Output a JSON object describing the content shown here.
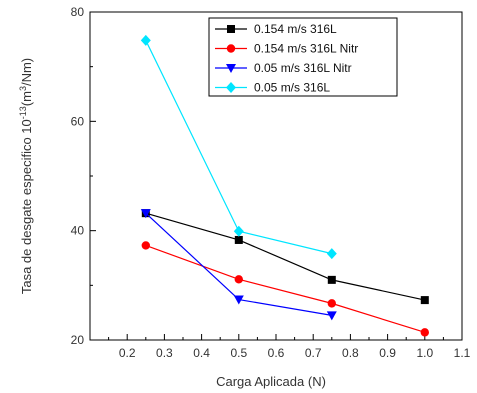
{
  "chart_data": {
    "type": "line",
    "title": "",
    "xlabel": "Carga Aplicada (N)",
    "ylabel_main": "Tasa de desgate especifico 10",
    "ylabel_exp": "-13",
    "ylabel_unit_open": "(m",
    "ylabel_unit_exp": "3",
    "ylabel_unit_close": "/Nm)",
    "xlim": [
      0.1,
      1.1
    ],
    "ylim": [
      20,
      80
    ],
    "xticks": [
      "0.2",
      "0.3",
      "0.4",
      "0.5",
      "0.6",
      "0.7",
      "0.8",
      "0.9",
      "1.0",
      "1.1"
    ],
    "yticks": [
      "20",
      "40",
      "60",
      "80"
    ],
    "legend_position": "top-right",
    "series": [
      {
        "name": "0.154 m/s 316L",
        "color": "#000000",
        "marker": "square",
        "x": [
          0.25,
          0.5,
          0.75,
          1.0
        ],
        "y": [
          43.2,
          38.3,
          31.0,
          27.3
        ]
      },
      {
        "name": "0.154 m/s 316L Nitr",
        "color": "#ff0000",
        "marker": "circle",
        "x": [
          0.25,
          0.5,
          0.75,
          1.0
        ],
        "y": [
          37.3,
          31.1,
          26.7,
          21.4
        ]
      },
      {
        "name": "0.05 m/s 316L Nitr",
        "color": "#0000ff",
        "marker": "triangle-down",
        "x": [
          0.25,
          0.5,
          0.75
        ],
        "y": [
          43.2,
          27.4,
          24.5
        ]
      },
      {
        "name": "0.05 m/s 316L",
        "color": "#00e5ff",
        "marker": "diamond",
        "x": [
          0.25,
          0.5,
          0.75
        ],
        "y": [
          74.8,
          39.9,
          35.8
        ]
      }
    ]
  }
}
